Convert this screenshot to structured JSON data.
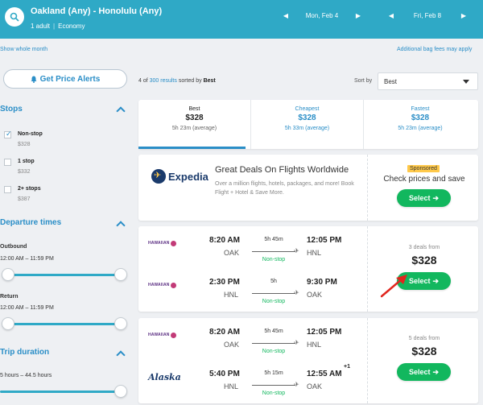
{
  "header": {
    "route": "Oakland (Any) - Honolulu (Any)",
    "travelers": "1 adult",
    "cabin": "Economy",
    "depart_date": "Mon, Feb 4",
    "return_date": "Fri, Feb 8",
    "prev_glyph": "◀",
    "next_glyph": "▶"
  },
  "links": {
    "show_month": "Show whole month",
    "bag_fees": "Additional bag fees may apply"
  },
  "price_alert": {
    "label": "Get Price Alerts",
    "icon": "bell-icon"
  },
  "results": {
    "count_prefix": "4",
    "count_of": " of ",
    "count_total": "300 results",
    "count_suffix": " sorted by ",
    "sorted_by": "Best",
    "sort_label": "Sort by",
    "sort_value": "Best"
  },
  "filters": {
    "stops_title": "Stops",
    "stops": [
      {
        "label": "Non-stop",
        "price": "$328",
        "checked": true
      },
      {
        "label": "1 stop",
        "price": "$332",
        "checked": false
      },
      {
        "label": "2+ stops",
        "price": "$387",
        "checked": false
      }
    ],
    "departure_title": "Departure times",
    "outbound_label": "Outbound",
    "outbound_range": "12:00 AM – 11:59 PM",
    "return_label": "Return",
    "return_range": "12:00 AM – 11:59 PM",
    "duration_title": "Trip duration",
    "duration_range": "5 hours – 44.5 hours"
  },
  "sort_tabs": [
    {
      "title": "Best",
      "price": "$328",
      "duration": "5h 23m (average)",
      "active": true
    },
    {
      "title": "Cheapest",
      "price": "$328",
      "duration": "5h 33m (average)",
      "active": false
    },
    {
      "title": "Fastest",
      "price": "$328",
      "duration": "5h 23m (average)",
      "active": false
    }
  ],
  "ad": {
    "brand": "Expedia",
    "title": "Great Deals On Flights Worldwide",
    "description": "Over a million flights, hotels, packages, and more! Book Flight + Hotel & Save More.",
    "sponsored": "Sponsored",
    "cta": "Check prices and save",
    "select": "Select"
  },
  "flights": [
    {
      "deals": "3 deals from",
      "price": "$328",
      "select": "Select",
      "legs": [
        {
          "airline": "HAWAIIAN",
          "depart": "8:20 AM",
          "from": "OAK",
          "duration": "5h 45m",
          "stops": "Non-stop",
          "arrive": "12:05 PM",
          "to": "HNL",
          "plus": ""
        },
        {
          "airline": "HAWAIIAN",
          "depart": "2:30 PM",
          "from": "HNL",
          "duration": "5h",
          "stops": "Non-stop",
          "arrive": "9:30 PM",
          "to": "OAK",
          "plus": ""
        }
      ]
    },
    {
      "deals": "5 deals from",
      "price": "$328",
      "select": "Select",
      "legs": [
        {
          "airline": "HAWAIIAN",
          "depart": "8:20 AM",
          "from": "OAK",
          "duration": "5h 45m",
          "stops": "Non-stop",
          "arrive": "12:05 PM",
          "to": "HNL",
          "plus": ""
        },
        {
          "airline": "Alaska",
          "depart": "5:40 PM",
          "from": "HNL",
          "duration": "5h 15m",
          "stops": "Non-stop",
          "arrive": "12:55 AM",
          "to": "OAK",
          "plus": "+1"
        }
      ]
    }
  ],
  "colors": {
    "header": "#2fa9c6",
    "link": "#2a8ec7",
    "select": "#12b75e",
    "nonstop": "#12b75e",
    "sponsored": "#ffc94a"
  }
}
